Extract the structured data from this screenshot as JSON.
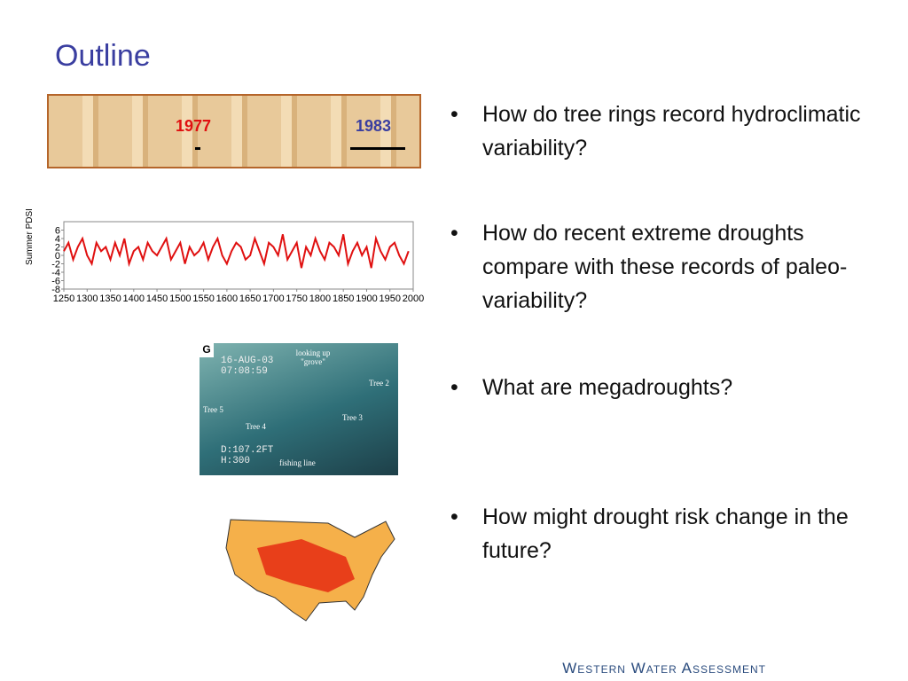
{
  "slide": {
    "title": "Outline",
    "bullets": [
      "How do tree rings record hydroclimatic variability?",
      "How do recent extreme droughts compare with these records of paleo-variability?",
      "What are megadroughts?",
      "How might drought risk change in the future?"
    ],
    "footer": "Western Water Assessment"
  },
  "tree_ring_image": {
    "labels": [
      "1977",
      "1983"
    ]
  },
  "video_frame": {
    "corner": "G",
    "date": "16-AUG-03",
    "time": "07:08:59",
    "caption": "looking up \"grove\"",
    "trees": [
      "Tree 2",
      "Tree 5",
      "Tree 4",
      "Tree 3"
    ],
    "depth": "D:107.2FT",
    "heading": "H:300",
    "note": "fishing line"
  },
  "chart_data": {
    "type": "line",
    "y_label": "Summer PDSI",
    "x": [
      1250,
      1260,
      1270,
      1280,
      1290,
      1300,
      1310,
      1320,
      1330,
      1340,
      1350,
      1360,
      1370,
      1380,
      1390,
      1400,
      1410,
      1420,
      1430,
      1440,
      1450,
      1460,
      1470,
      1480,
      1490,
      1500,
      1510,
      1520,
      1530,
      1540,
      1550,
      1560,
      1570,
      1580,
      1590,
      1600,
      1610,
      1620,
      1630,
      1640,
      1650,
      1660,
      1670,
      1680,
      1690,
      1700,
      1710,
      1720,
      1730,
      1740,
      1750,
      1760,
      1770,
      1780,
      1790,
      1800,
      1810,
      1820,
      1830,
      1840,
      1850,
      1860,
      1870,
      1880,
      1890,
      1900,
      1910,
      1920,
      1930,
      1940,
      1950,
      1960,
      1970,
      1980,
      1990
    ],
    "series": [
      {
        "name": "Summer PDSI",
        "color": "#e01010",
        "values": [
          1,
          3,
          -1,
          2,
          4,
          0,
          -2,
          3,
          1,
          2,
          -1,
          3,
          0,
          4,
          -2,
          1,
          2,
          -1,
          3,
          1,
          0,
          2,
          4,
          -1,
          1,
          3,
          -2,
          2,
          0,
          1,
          3,
          -1,
          2,
          4,
          0,
          -2,
          1,
          3,
          2,
          -1,
          0,
          4,
          1,
          -2,
          3,
          2,
          0,
          5,
          -1,
          1,
          3,
          -3,
          2,
          0,
          4,
          1,
          -1,
          3,
          2,
          0,
          5,
          -2,
          1,
          3,
          0,
          2,
          -3,
          4,
          1,
          -1,
          2,
          3,
          0,
          -2,
          1
        ]
      }
    ],
    "xlim": [
      1250,
      2000
    ],
    "ylim": [
      -8,
      8
    ],
    "xticks": [
      1250,
      1300,
      1350,
      1400,
      1450,
      1500,
      1550,
      1600,
      1650,
      1700,
      1750,
      1800,
      1850,
      1900,
      1950,
      2000
    ],
    "yticks": [
      6,
      4,
      2,
      0,
      -2,
      -4,
      -6,
      -8
    ]
  }
}
